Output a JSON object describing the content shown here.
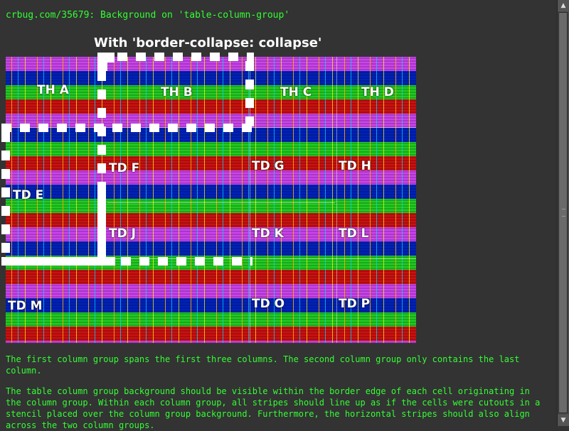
{
  "header": {
    "link_text": "crbug.com/35679: Background on 'table-column-group'"
  },
  "caption": "With 'border-collapse: collapse'",
  "cells": {
    "th_a": "TH A",
    "th_b": "TH B",
    "th_c": "TH C",
    "th_d": "TH D",
    "td_e": "TD E",
    "td_f": "TD F",
    "td_g": "TD G",
    "td_h": "TD H",
    "td_j": "TD J",
    "td_k": "TD K",
    "td_l": "TD L",
    "td_m": "TD M",
    "td_o": "TD O",
    "td_p": "TD P"
  },
  "description": {
    "p1": "The first column group spans the first three columns. The second column group only contains the last column.",
    "p2": "The table column group background should be visible within the border edge of each cell originating in the column group. Within each column group, all stripes should line up as if the cells were cutouts in a stencil placed over the column group background. Furthermore, the horizontal stripes should also align across the two column groups."
  },
  "scrollbar": {
    "up_icon": "arrow-up-icon",
    "down_icon": "arrow-down-icon"
  },
  "colors": {
    "background": "#333333",
    "text_green": "#33ff33",
    "stripe_magenta": "#cc44ee",
    "stripe_blue": "#0022bb",
    "stripe_green": "#22cc22",
    "stripe_red": "#cc1111"
  }
}
